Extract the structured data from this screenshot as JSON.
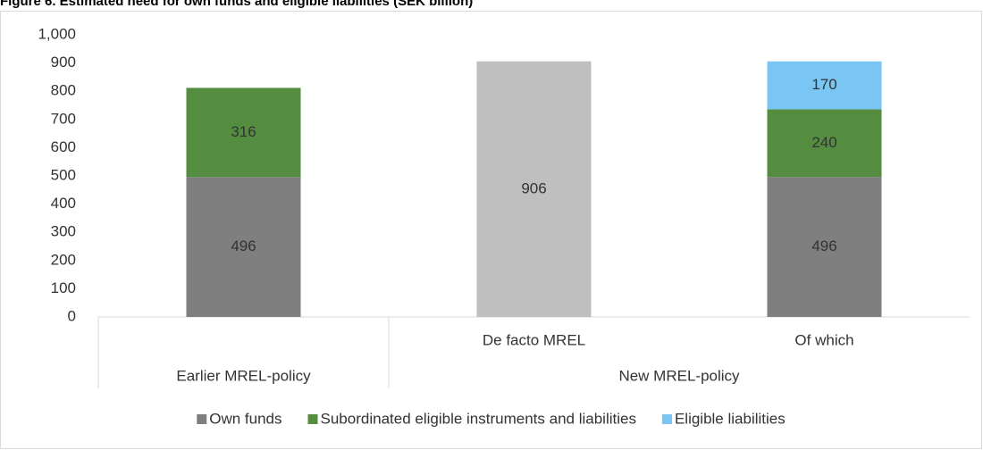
{
  "chart_data": {
    "type": "bar",
    "stacked": true,
    "title": "Figure 6. Estimated need for own funds and eligible liabilities (SEK billion)",
    "categories": [
      null,
      "De facto MREL",
      "Of which"
    ],
    "category_groups": [
      {
        "label": "Earlier MREL-policy",
        "span": 1
      },
      {
        "label": "New MREL-policy",
        "span": 2
      }
    ],
    "series": [
      {
        "name": "Own funds",
        "color": "#7f7f7f",
        "point_colors": [
          "#7f7f7f",
          "#bfbfbf",
          "#7f7f7f"
        ],
        "values": [
          496,
          906,
          496
        ]
      },
      {
        "name": "Subordinated eligible instruments and liabilities",
        "color": "#548d3f",
        "values": [
          316,
          null,
          240
        ]
      },
      {
        "name": "Eligible liabilities",
        "color": "#79c6f5",
        "values": [
          null,
          null,
          170
        ]
      }
    ],
    "ylim": [
      0,
      1000
    ],
    "yticks": [
      0,
      100,
      200,
      300,
      400,
      500,
      600,
      700,
      800,
      900,
      {
        "value": 1000,
        "label": "1,000"
      }
    ],
    "grid": false,
    "legend": "bottom"
  }
}
